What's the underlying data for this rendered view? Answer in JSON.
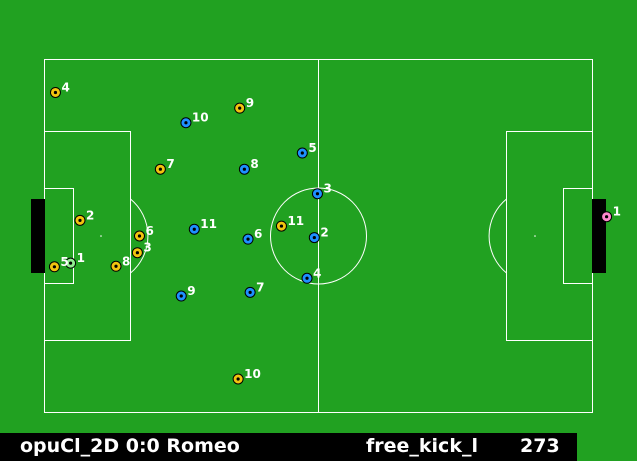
{
  "scoreboard": {
    "left_team": "opuCl_2D",
    "score": "0:0",
    "right_team": "Romeo",
    "play_mode": "free_kick_l",
    "cycle": "273"
  },
  "colors": {
    "field": "#21a121",
    "lines": "#ffffff",
    "left_team": "#f1c40f",
    "left_goalie": "#90ee90",
    "right_team": "#1e90ff",
    "right_goalie": "#ff88cc",
    "goal": "#000000"
  },
  "players": [
    {
      "team": "left",
      "num": "1",
      "x": -47.5,
      "y": 5.2,
      "goalie": true
    },
    {
      "team": "left",
      "num": "2",
      "x": -45.7,
      "y": -3.0,
      "goalie": false
    },
    {
      "team": "left",
      "num": "3",
      "x": -34.7,
      "y": 3.2,
      "goalie": false
    },
    {
      "team": "left",
      "num": "4",
      "x": -50.4,
      "y": -27.5,
      "goalie": false
    },
    {
      "team": "left",
      "num": "5",
      "x": -50.6,
      "y": 5.9,
      "goalie": false
    },
    {
      "team": "left",
      "num": "6",
      "x": -34.3,
      "y": 0.0,
      "goalie": false
    },
    {
      "team": "left",
      "num": "7",
      "x": -30.3,
      "y": -12.8,
      "goalie": false
    },
    {
      "team": "left",
      "num": "8",
      "x": -38.8,
      "y": 5.8,
      "goalie": false
    },
    {
      "team": "left",
      "num": "9",
      "x": -15.1,
      "y": -24.5,
      "goalie": false
    },
    {
      "team": "left",
      "num": "10",
      "x": -15.4,
      "y": 27.4,
      "goalie": false
    },
    {
      "team": "left",
      "num": "11",
      "x": -7.1,
      "y": -1.9,
      "goalie": false
    },
    {
      "team": "right",
      "num": "1",
      "x": 55.2,
      "y": -3.7,
      "goalie": true
    },
    {
      "team": "right",
      "num": "2",
      "x": -0.8,
      "y": 0.3,
      "goalie": false
    },
    {
      "team": "right",
      "num": "3",
      "x": -0.2,
      "y": -8.1,
      "goalie": false
    },
    {
      "team": "right",
      "num": "4",
      "x": -2.2,
      "y": 8.1,
      "goalie": false
    },
    {
      "team": "right",
      "num": "5",
      "x": -3.1,
      "y": -15.9,
      "goalie": false
    },
    {
      "team": "right",
      "num": "6",
      "x": -13.5,
      "y": 0.6,
      "goalie": false
    },
    {
      "team": "right",
      "num": "7",
      "x": -13.1,
      "y": 10.8,
      "goalie": false
    },
    {
      "team": "right",
      "num": "8",
      "x": -14.2,
      "y": -12.8,
      "goalie": false
    },
    {
      "team": "right",
      "num": "9",
      "x": -26.3,
      "y": 11.5,
      "goalie": false
    },
    {
      "team": "right",
      "num": "10",
      "x": -25.4,
      "y": -21.7,
      "goalie": false
    },
    {
      "team": "right",
      "num": "11",
      "x": -23.8,
      "y": -1.3,
      "goalie": false
    }
  ]
}
